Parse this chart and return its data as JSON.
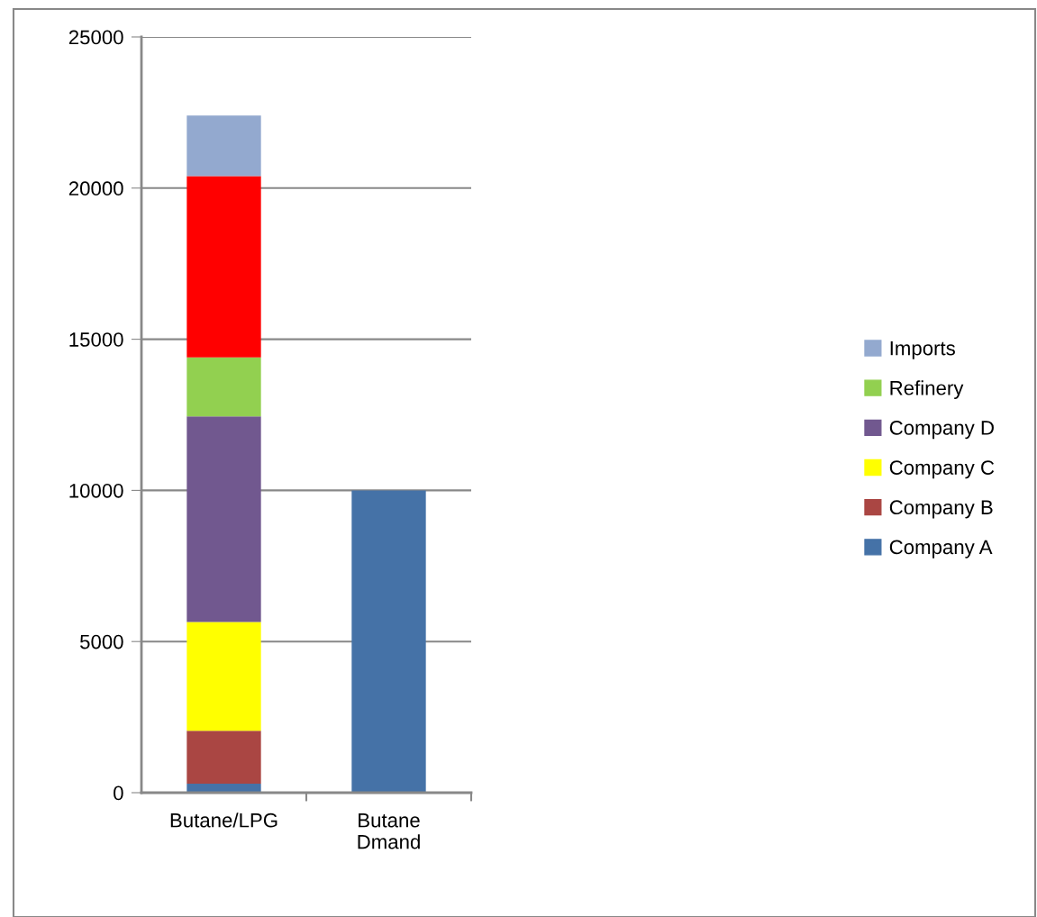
{
  "chart_data": {
    "type": "bar",
    "stacked": true,
    "categories": [
      "Butane/LPG",
      "Butane\nDmand"
    ],
    "series": [
      {
        "name": "Company A",
        "color": "#4572a7",
        "values": [
          300,
          10000
        ]
      },
      {
        "name": "Company B",
        "color": "#aa4643",
        "values": [
          1750,
          null
        ]
      },
      {
        "name": "Company C",
        "color": "#ffff00",
        "values": [
          3600,
          null
        ]
      },
      {
        "name": "Company D",
        "color": "#71588f",
        "values": [
          6800,
          null
        ]
      },
      {
        "name": "Refinery",
        "color": "#92d050",
        "values": [
          1950,
          null
        ]
      },
      {
        "color": "#ff0000",
        "values": [
          6000,
          null
        ]
      },
      {
        "name": "Imports",
        "color": "#93a9cf",
        "values": [
          2000,
          null
        ]
      }
    ],
    "ylim": [
      0,
      25000
    ],
    "yticks": [
      0,
      5000,
      10000,
      15000,
      20000,
      25000
    ],
    "grid": "y",
    "legend": "right"
  }
}
